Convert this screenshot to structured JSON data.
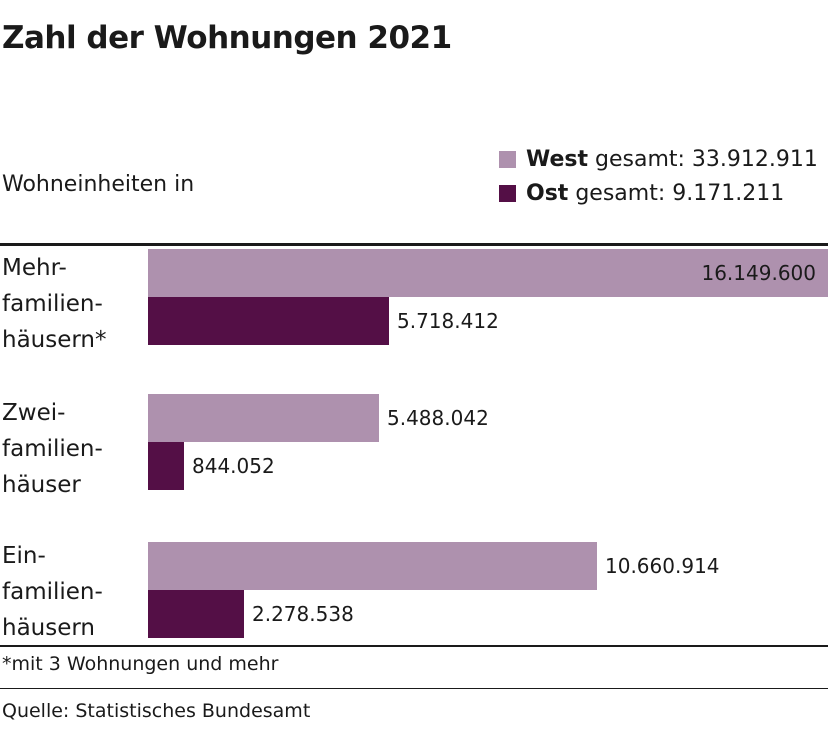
{
  "title": "Zahl der Wohnungen 2021",
  "unit_label": "Wohneinheiten in",
  "legend": [
    {
      "name": "West",
      "text": "gesamt: 33.912.911",
      "color": "#ae91ae"
    },
    {
      "name": "Ost",
      "text": "gesamt: 9.171.211",
      "color": "#540f46"
    }
  ],
  "footnote": "*mit 3 Wohnungen und mehr",
  "source": "Quelle: Statistisches Bundesamt",
  "chart_data": {
    "type": "bar",
    "orientation": "horizontal",
    "title": "Zahl der Wohnungen 2021",
    "categories": [
      [
        "Mehr-",
        "familien-",
        "häusern*"
      ],
      [
        "Zwei-",
        "familien-",
        "häuser"
      ],
      [
        "Ein-",
        "familien-",
        "häusern"
      ]
    ],
    "series": [
      {
        "name": "West",
        "color": "#ae91ae",
        "values": [
          16149600,
          5488042,
          10660914
        ],
        "labels": [
          "16.149.600",
          "5.488.042",
          "10.660.914"
        ]
      },
      {
        "name": "Ost",
        "color": "#540f46",
        "values": [
          5718412,
          844052,
          2278538
        ],
        "labels": [
          "5.718.412",
          "844.052",
          "2.278.538"
        ]
      }
    ],
    "xlim": [
      0,
      16149600
    ],
    "grid": false,
    "legend_position": "top-right"
  }
}
